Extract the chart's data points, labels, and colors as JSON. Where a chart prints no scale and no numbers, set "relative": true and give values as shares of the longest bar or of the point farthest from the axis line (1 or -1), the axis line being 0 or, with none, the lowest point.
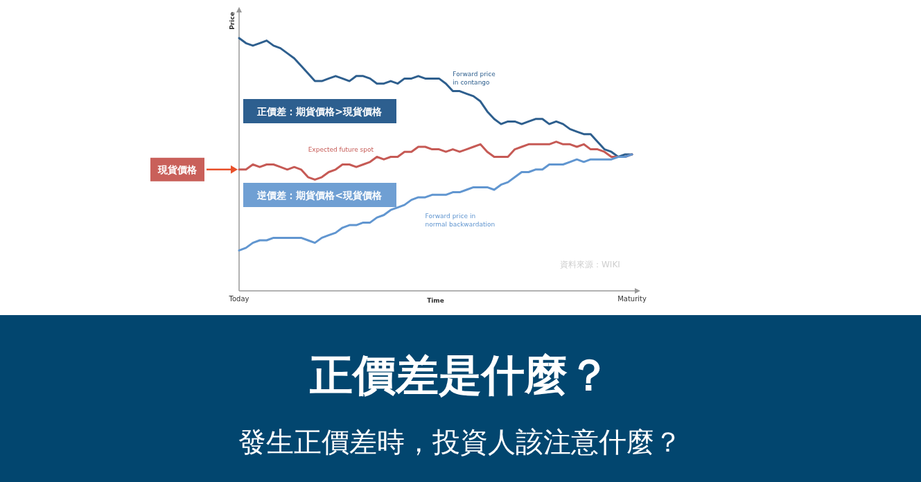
{
  "chart_data": {
    "type": "line",
    "title": "正價差是什麼？",
    "subtitle": "發生正價差時，投資人該注意什麼？",
    "xlabel": "Time",
    "ylabel": "Price",
    "relative": true,
    "categories": [
      "Today",
      null,
      null,
      null,
      null,
      null,
      null,
      null,
      null,
      null,
      null,
      null,
      null,
      null,
      null,
      null,
      null,
      null,
      null,
      null,
      null,
      null,
      null,
      null,
      null,
      null,
      null,
      null,
      null,
      null,
      null,
      null,
      null,
      null,
      null,
      null,
      null,
      null,
      null,
      null,
      null,
      null,
      null,
      null,
      null,
      null,
      null,
      null,
      null,
      null,
      null,
      null,
      null,
      null,
      null,
      null,
      null,
      "Maturity"
    ],
    "series": [
      {
        "type": "line",
        "name": "Forward price\nin contango",
        "color": "#2e5f8e",
        "values": [
          1,
          0.98,
          0.97,
          0.98,
          0.99,
          0.97,
          0.96,
          0.94,
          0.92,
          0.89,
          0.86,
          0.83,
          0.83,
          0.84,
          0.85,
          0.84,
          0.83,
          0.85,
          0.85,
          0.84,
          0.82,
          0.82,
          0.83,
          0.82,
          0.84,
          0.84,
          0.85,
          0.84,
          0.84,
          0.84,
          0.82,
          0.79,
          0.79,
          0.78,
          0.77,
          0.75,
          0.71,
          0.68,
          0.66,
          0.67,
          0.67,
          0.66,
          0.67,
          0.68,
          0.68,
          0.66,
          0.67,
          0.66,
          0.64,
          0.63,
          0.62,
          0.62,
          0.59,
          0.56,
          0.55,
          0.53,
          0.54,
          0.54
        ]
      },
      {
        "type": "line",
        "name": "Expected future spot",
        "color": "#c65a55",
        "values": [
          0.48,
          0.48,
          0.5,
          0.49,
          0.5,
          0.5,
          0.49,
          0.48,
          0.49,
          0.48,
          0.45,
          0.44,
          0.45,
          0.47,
          0.48,
          0.5,
          0.5,
          0.49,
          0.5,
          0.51,
          0.53,
          0.52,
          0.53,
          0.53,
          0.55,
          0.55,
          0.57,
          0.57,
          0.56,
          0.56,
          0.55,
          0.56,
          0.55,
          0.56,
          0.57,
          0.58,
          0.55,
          0.53,
          0.53,
          0.53,
          0.56,
          0.57,
          0.58,
          0.58,
          0.58,
          0.58,
          0.59,
          0.58,
          0.58,
          0.57,
          0.58,
          0.56,
          0.56,
          0.55,
          0.53,
          0.53,
          0.53,
          0.54
        ]
      },
      {
        "type": "line",
        "name": "Forward price in\nnormal backwardation",
        "color": "#6196d0",
        "values": [
          0.16,
          0.17,
          0.19,
          0.2,
          0.2,
          0.21,
          0.21,
          0.21,
          0.21,
          0.21,
          0.2,
          0.19,
          0.21,
          0.22,
          0.23,
          0.25,
          0.26,
          0.26,
          0.27,
          0.27,
          0.29,
          0.3,
          0.32,
          0.33,
          0.34,
          0.36,
          0.37,
          0.37,
          0.38,
          0.38,
          0.38,
          0.39,
          0.39,
          0.4,
          0.41,
          0.41,
          0.41,
          0.4,
          0.42,
          0.43,
          0.45,
          0.47,
          0.47,
          0.48,
          0.48,
          0.5,
          0.5,
          0.5,
          0.51,
          0.52,
          0.51,
          0.52,
          0.52,
          0.52,
          0.52,
          0.53,
          0.53,
          0.54
        ]
      }
    ],
    "annotations": [
      "正價差：期貨價格>現貨價格",
      "逆價差：期貨價格<現貨價格",
      "現貨價格",
      "資料來源：WIKI"
    ]
  }
}
